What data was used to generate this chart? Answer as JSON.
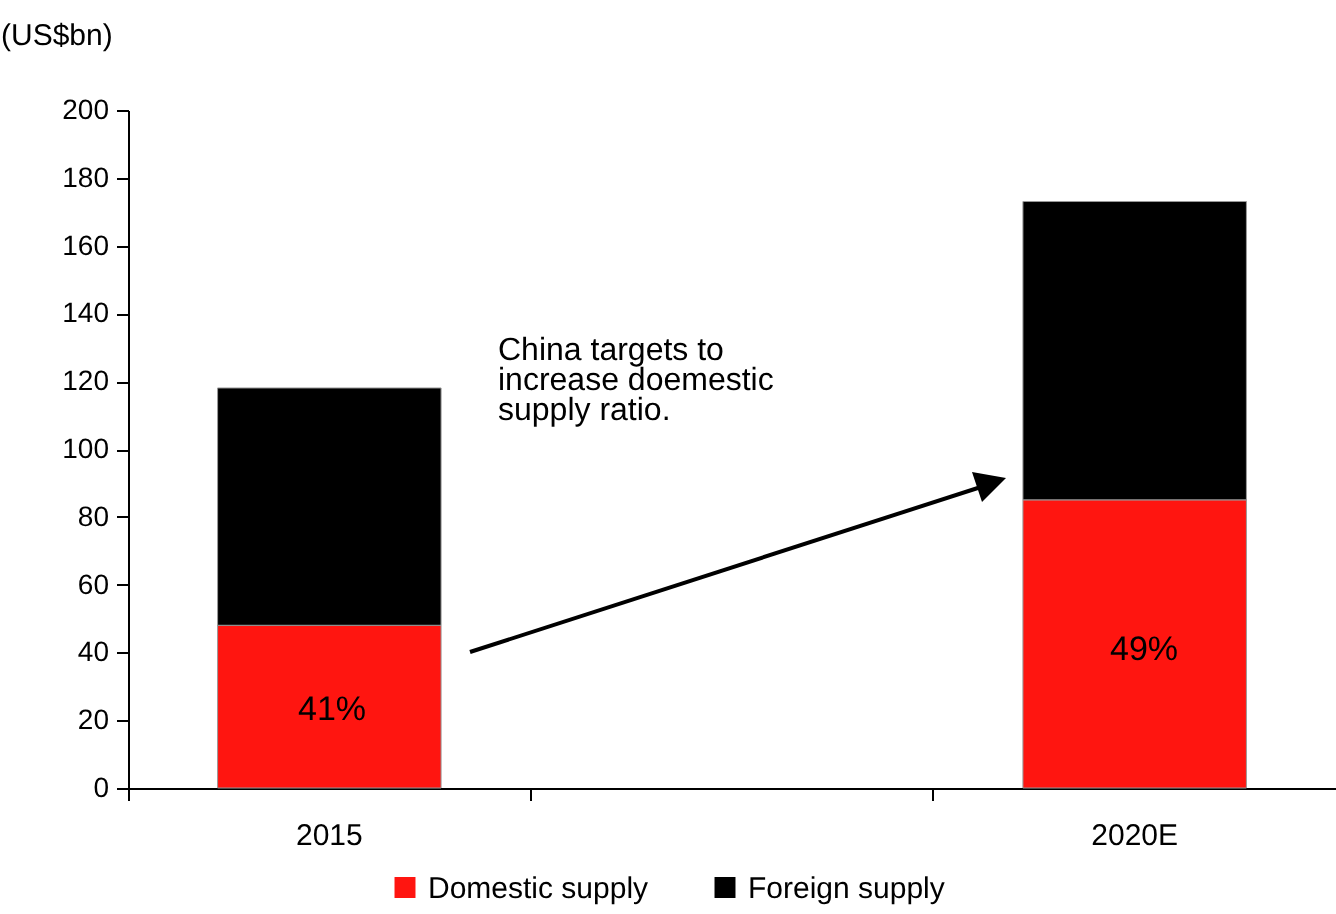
{
  "chart_data": {
    "type": "bar",
    "stacked": true,
    "ylabel": "(US$bn)",
    "categories": [
      "2015",
      null,
      "2020E"
    ],
    "series": [
      {
        "name": "Domestic supply",
        "color": "#ff1510",
        "values": [
          48,
          null,
          85
        ]
      },
      {
        "name": "Foreign supply",
        "color": "#000000",
        "values": [
          70,
          null,
          88
        ]
      }
    ],
    "ylim": [
      0,
      200
    ],
    "yticks": [
      0,
      20,
      40,
      60,
      80,
      100,
      120,
      140,
      160,
      180,
      200
    ],
    "grid": false,
    "legend": "bottom",
    "annotations": [
      "China targets to\nincrease doemestic\nsupply ratio.",
      "41%",
      "49%"
    ]
  }
}
